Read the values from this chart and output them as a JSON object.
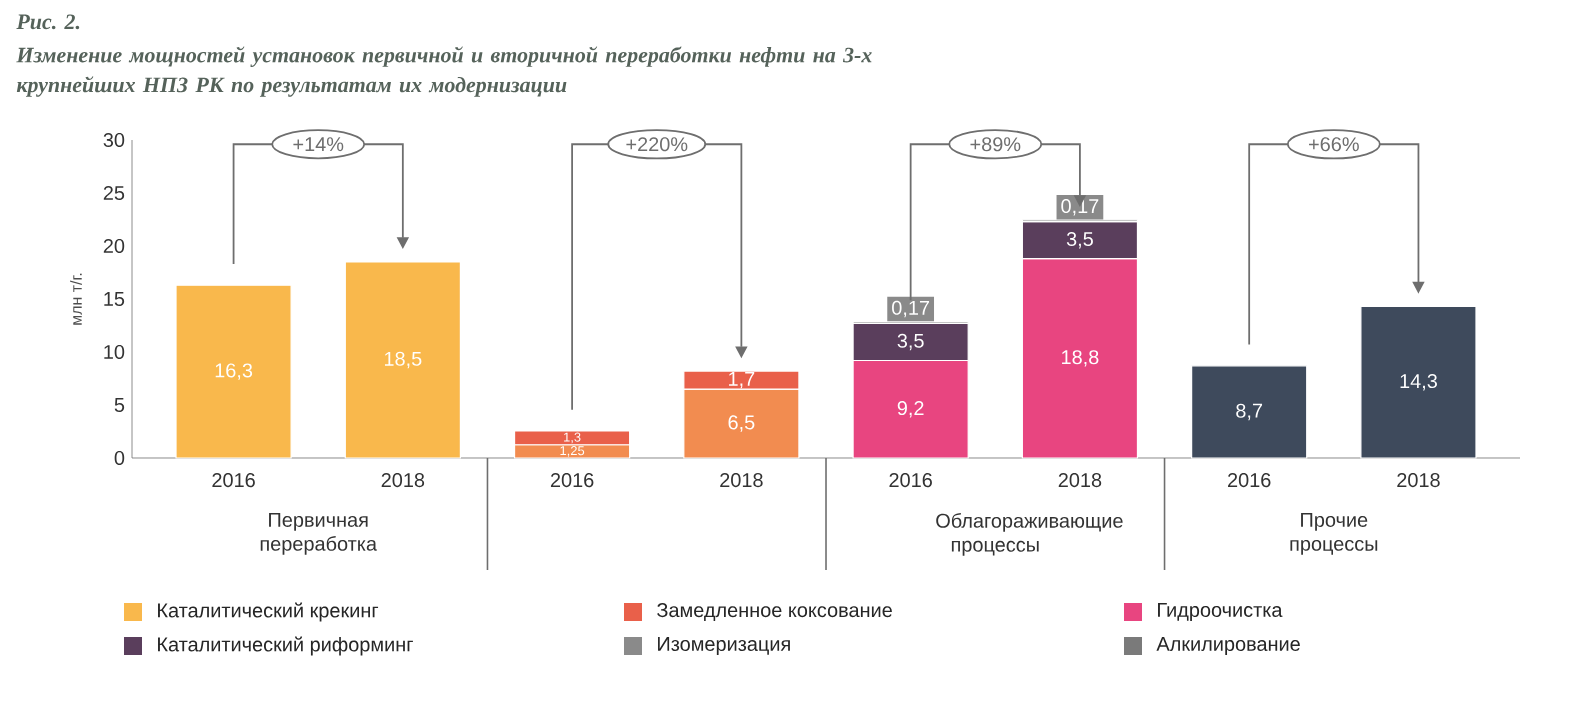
{
  "chart_data": {
    "type": "bar",
    "stacked": true,
    "title": "Рис. 2.",
    "subtitle": "Изменение мощностей установок первичной и вторичной переработки нефти на 3-х крупнейших НПЗ РК по результатам их модернизации",
    "ylabel": "млн т/г.",
    "categories": [
      "2016",
      "2018",
      "2016",
      "2018",
      "2016",
      "2018",
      "2016",
      "2018"
    ],
    "series": [
      {
        "name": "Каталитический крекинг",
        "color": "#f9b84c",
        "colors": [
          "#f9b84c",
          "#f9b84c",
          "#f28c50",
          "#f28c50",
          null,
          null,
          null,
          null
        ],
        "values": [
          16.3,
          18.5,
          1.25,
          6.5,
          null,
          null,
          null,
          null
        ],
        "value_labels": [
          "16,3",
          "18,5",
          "1,25",
          "6,5",
          null,
          null,
          null,
          null
        ]
      },
      {
        "name": "Замедленное коксование",
        "color": "#e9604a",
        "values": [
          null,
          null,
          1.3,
          1.7,
          null,
          null,
          null,
          null
        ],
        "value_labels": [
          null,
          null,
          "1,3",
          "1,7",
          null,
          null,
          null,
          null
        ]
      },
      {
        "name": "Гидроочистка",
        "color": "#e84580",
        "values": [
          null,
          null,
          null,
          null,
          9.2,
          18.8,
          null,
          null
        ],
        "value_labels": [
          null,
          null,
          null,
          null,
          "9,2",
          "18,8",
          null,
          null
        ]
      },
      {
        "name": "Каталитический риформинг",
        "color": "#5a3e5c",
        "values": [
          null,
          null,
          null,
          null,
          3.5,
          3.5,
          null,
          null
        ],
        "value_labels": [
          null,
          null,
          null,
          null,
          "3,5",
          "3,5",
          null,
          null
        ]
      },
      {
        "name": "Изомеризация",
        "color": "#8a8a8a",
        "values": [
          null,
          null,
          null,
          null,
          0.17,
          0.17,
          null,
          null
        ],
        "value_labels": [
          null,
          null,
          null,
          null,
          "0,17",
          "0,17",
          null,
          null
        ]
      },
      {
        "name": "Алкилирование",
        "color": "#7a7a7a",
        "values": [
          null,
          null,
          null,
          null,
          null,
          null,
          null,
          null
        ]
      },
      {
        "color": "#3e4a5c",
        "values": [
          null,
          null,
          null,
          null,
          null,
          null,
          8.7,
          14.3
        ],
        "value_labels": [
          null,
          null,
          null,
          null,
          null,
          null,
          "8,7",
          "14,3"
        ]
      }
    ],
    "annotations": [
      "+14%",
      "+220%",
      "+89%",
      "+66%",
      "Первичная переработка",
      "Облагораживающие процессы",
      "Прочие процессы"
    ],
    "ylim": [
      0,
      30
    ],
    "yticks": [
      0,
      5,
      10,
      15,
      20,
      25,
      30
    ],
    "grid": false,
    "legend": "bottom"
  }
}
